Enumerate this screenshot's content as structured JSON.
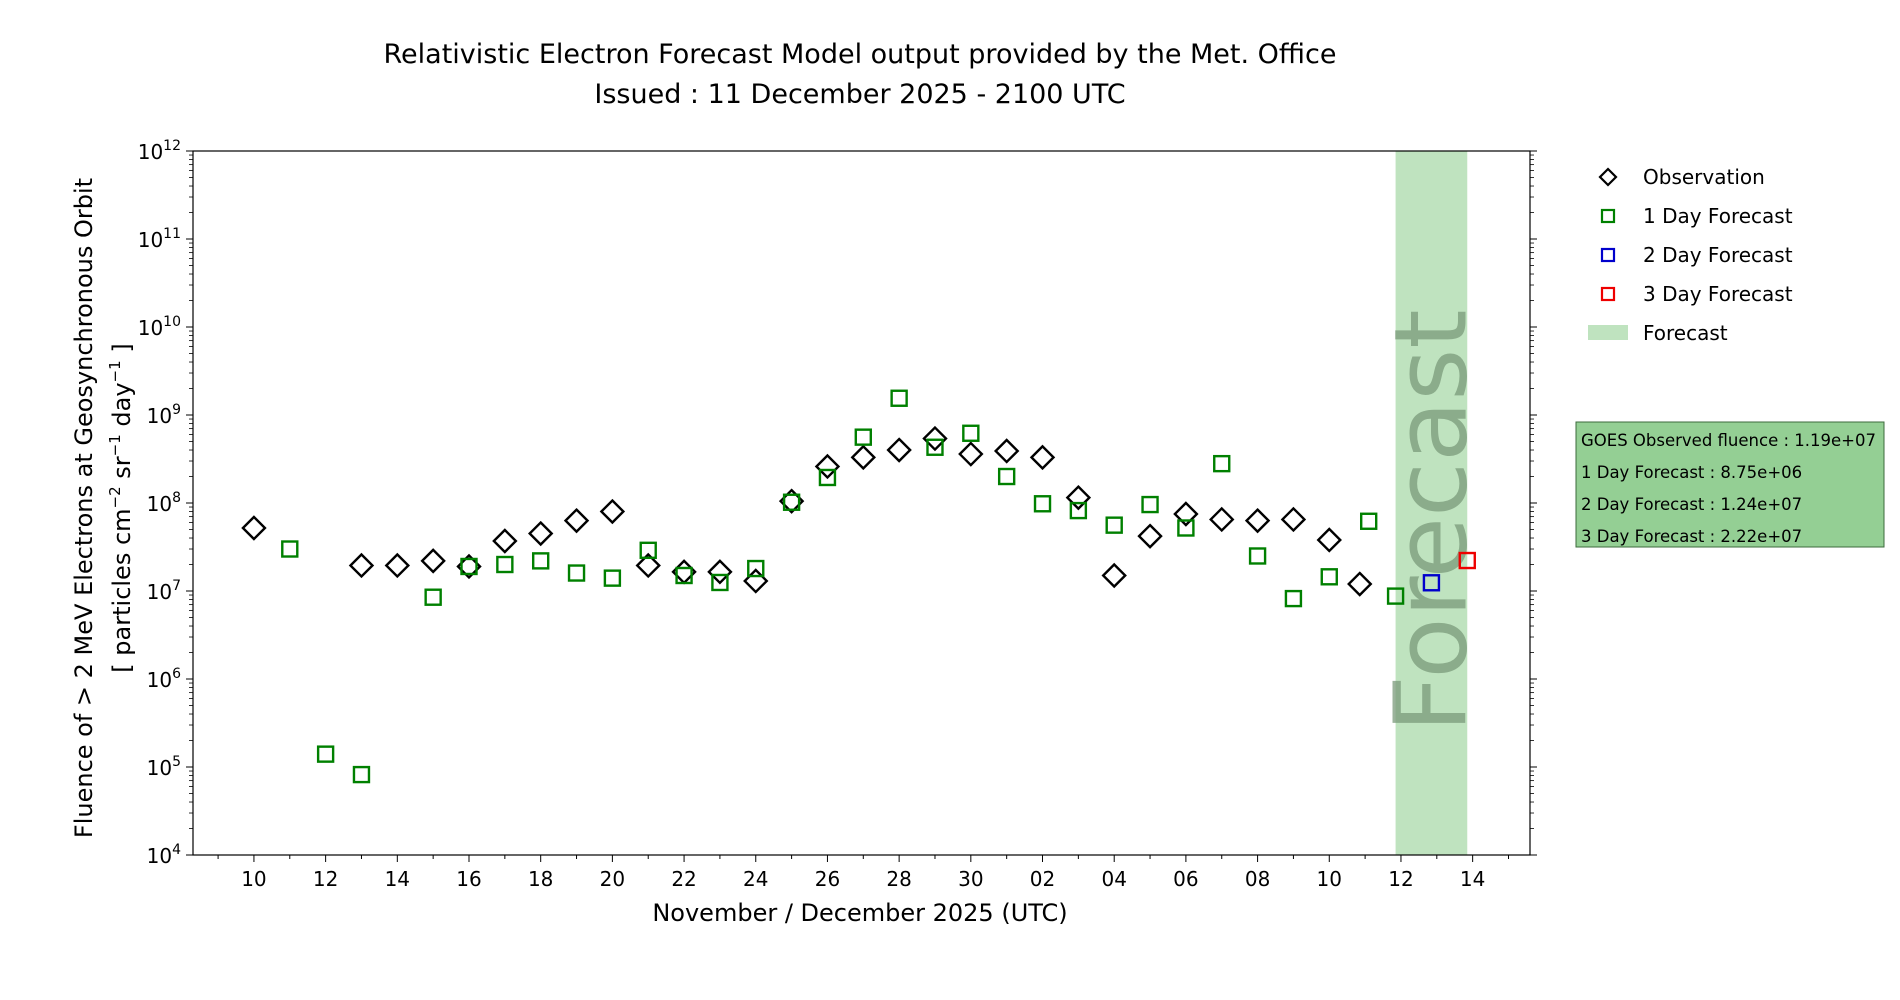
{
  "chart_data": {
    "type": "scatter",
    "title": "Relativistic Electron Forecast Model output provided by the Met. Office",
    "subtitle": "Issued : 11 December 2025 - 2100 UTC",
    "xlabel": "November / December 2025 (UTC)",
    "ylabel_line1": "Fluence of > 2 MeV Electrons at Geosynchronous Orbit",
    "ylabel_line2_prefix": "[ particles cm",
    "ylabel_line2_sup1": "−2",
    "ylabel_line2_mid1": " sr",
    "ylabel_line2_sup2": "−1",
    "ylabel_line2_mid2": " day",
    "ylabel_line2_sup3": "−1",
    "ylabel_line2_suffix": " ]",
    "yscale": "log",
    "ylim": [
      10000,
      1000000000000
    ],
    "y_ticks": [
      {
        "base": "10",
        "exp": "4",
        "value": 4
      },
      {
        "base": "10",
        "exp": "5",
        "value": 5
      },
      {
        "base": "10",
        "exp": "6",
        "value": 6
      },
      {
        "base": "10",
        "exp": "7",
        "value": 7
      },
      {
        "base": "10",
        "exp": "8",
        "value": 8
      },
      {
        "base": "10",
        "exp": "9",
        "value": 9
      },
      {
        "base": "10",
        "exp": "10",
        "value": 10
      },
      {
        "base": "10",
        "exp": "11",
        "value": 11
      },
      {
        "base": "10",
        "exp": "12",
        "value": 12
      }
    ],
    "xlim": [
      -1.7,
      35.6
    ],
    "x_ticks": [
      {
        "label": "10",
        "day": 0
      },
      {
        "label": "12",
        "day": 2
      },
      {
        "label": "14",
        "day": 4
      },
      {
        "label": "16",
        "day": 6
      },
      {
        "label": "18",
        "day": 8
      },
      {
        "label": "20",
        "day": 10
      },
      {
        "label": "22",
        "day": 12
      },
      {
        "label": "24",
        "day": 14
      },
      {
        "label": "26",
        "day": 16
      },
      {
        "label": "28",
        "day": 18
      },
      {
        "label": "30",
        "day": 20
      },
      {
        "label": "02",
        "day": 22
      },
      {
        "label": "04",
        "day": 24
      },
      {
        "label": "06",
        "day": 26
      },
      {
        "label": "08",
        "day": 28
      },
      {
        "label": "10",
        "day": 30
      },
      {
        "label": "12",
        "day": 32
      },
      {
        "label": "14",
        "day": 34
      }
    ],
    "forecast_band": {
      "start_day": 31.85,
      "end_day": 33.85,
      "label": "Forecast",
      "color": "#bfe3bf"
    },
    "series": [
      {
        "name": "Observation",
        "marker": "diamond",
        "color": "#000000",
        "points": [
          {
            "x": 0,
            "y": 52000000.0
          },
          {
            "x": 3,
            "y": 19500000.0
          },
          {
            "x": 4,
            "y": 19500000.0
          },
          {
            "x": 5,
            "y": 22000000.0
          },
          {
            "x": 6,
            "y": 19000000.0
          },
          {
            "x": 7,
            "y": 37000000.0
          },
          {
            "x": 8,
            "y": 45000000.0
          },
          {
            "x": 9,
            "y": 63000000.0
          },
          {
            "x": 10,
            "y": 80000000.0
          },
          {
            "x": 11,
            "y": 19500000.0
          },
          {
            "x": 12,
            "y": 16500000.0
          },
          {
            "x": 13,
            "y": 16500000.0
          },
          {
            "x": 14,
            "y": 13000000.0
          },
          {
            "x": 15,
            "y": 105000000.0
          },
          {
            "x": 16,
            "y": 260000000.0
          },
          {
            "x": 17,
            "y": 330000000.0
          },
          {
            "x": 18,
            "y": 400000000.0
          },
          {
            "x": 19,
            "y": 540000000.0
          },
          {
            "x": 20,
            "y": 360000000.0
          },
          {
            "x": 21,
            "y": 390000000.0
          },
          {
            "x": 22,
            "y": 330000000.0
          },
          {
            "x": 23,
            "y": 115000000.0
          },
          {
            "x": 24,
            "y": 15000000.0
          },
          {
            "x": 25,
            "y": 42000000.0
          },
          {
            "x": 26,
            "y": 75000000.0
          },
          {
            "x": 27,
            "y": 65000000.0
          },
          {
            "x": 28,
            "y": 63000000.0
          },
          {
            "x": 29,
            "y": 65000000.0
          },
          {
            "x": 30,
            "y": 38000000.0
          },
          {
            "x": 30.85,
            "y": 12000000.0
          }
        ]
      },
      {
        "name": "1 Day Forecast",
        "marker": "square",
        "color": "#008000",
        "points": [
          {
            "x": 1,
            "y": 30000000.0
          },
          {
            "x": 2,
            "y": 140000.0
          },
          {
            "x": 3,
            "y": 82000.0
          },
          {
            "x": 5,
            "y": 8500000.0
          },
          {
            "x": 6,
            "y": 19000000.0
          },
          {
            "x": 7,
            "y": 20000000.0
          },
          {
            "x": 8,
            "y": 22000000.0
          },
          {
            "x": 9,
            "y": 16000000.0
          },
          {
            "x": 10,
            "y": 14000000.0
          },
          {
            "x": 11,
            "y": 29000000.0
          },
          {
            "x": 12,
            "y": 15000000.0
          },
          {
            "x": 13,
            "y": 12500000.0
          },
          {
            "x": 14,
            "y": 18000000.0
          },
          {
            "x": 15,
            "y": 102000000.0
          },
          {
            "x": 16,
            "y": 195000000.0
          },
          {
            "x": 17,
            "y": 560000000.0
          },
          {
            "x": 18,
            "y": 1550000000.0
          },
          {
            "x": 19,
            "y": 430000000.0
          },
          {
            "x": 20,
            "y": 620000000.0
          },
          {
            "x": 21,
            "y": 200000000.0
          },
          {
            "x": 22,
            "y": 98000000.0
          },
          {
            "x": 23,
            "y": 82000000.0
          },
          {
            "x": 24,
            "y": 56000000.0
          },
          {
            "x": 25,
            "y": 96000000.0
          },
          {
            "x": 26,
            "y": 52000000.0
          },
          {
            "x": 27,
            "y": 280000000.0
          },
          {
            "x": 28,
            "y": 25000000.0
          },
          {
            "x": 29,
            "y": 8200000.0
          },
          {
            "x": 30,
            "y": 14500000.0
          },
          {
            "x": 31.1,
            "y": 62000000.0
          },
          {
            "x": 31.85,
            "y": 8750000.0
          }
        ]
      },
      {
        "name": "2 Day Forecast",
        "marker": "square",
        "color": "#0000cc",
        "points": [
          {
            "x": 32.85,
            "y": 12400000.0
          }
        ]
      },
      {
        "name": "3 Day Forecast",
        "marker": "square",
        "color": "#ee0000",
        "points": [
          {
            "x": 33.85,
            "y": 22200000.0
          }
        ]
      }
    ],
    "legend": {
      "position": "right-outside",
      "items": [
        {
          "label": "Observation",
          "marker": "diamond",
          "color": "#000000"
        },
        {
          "label": "1 Day Forecast",
          "marker": "square",
          "color": "#008000"
        },
        {
          "label": "2 Day Forecast",
          "marker": "square",
          "color": "#0000cc"
        },
        {
          "label": "3 Day Forecast",
          "marker": "square",
          "color": "#ee0000"
        },
        {
          "label": "Forecast",
          "marker": "patch",
          "color": "#bfe3bf"
        }
      ]
    },
    "info_box": {
      "background": "#94cf94",
      "border": "#3d6b3d",
      "lines": [
        "GOES Observed fluence : 1.19e+07",
        "1 Day Forecast : 8.75e+06",
        "2 Day Forecast : 1.24e+07",
        "3 Day Forecast : 2.22e+07"
      ]
    }
  }
}
